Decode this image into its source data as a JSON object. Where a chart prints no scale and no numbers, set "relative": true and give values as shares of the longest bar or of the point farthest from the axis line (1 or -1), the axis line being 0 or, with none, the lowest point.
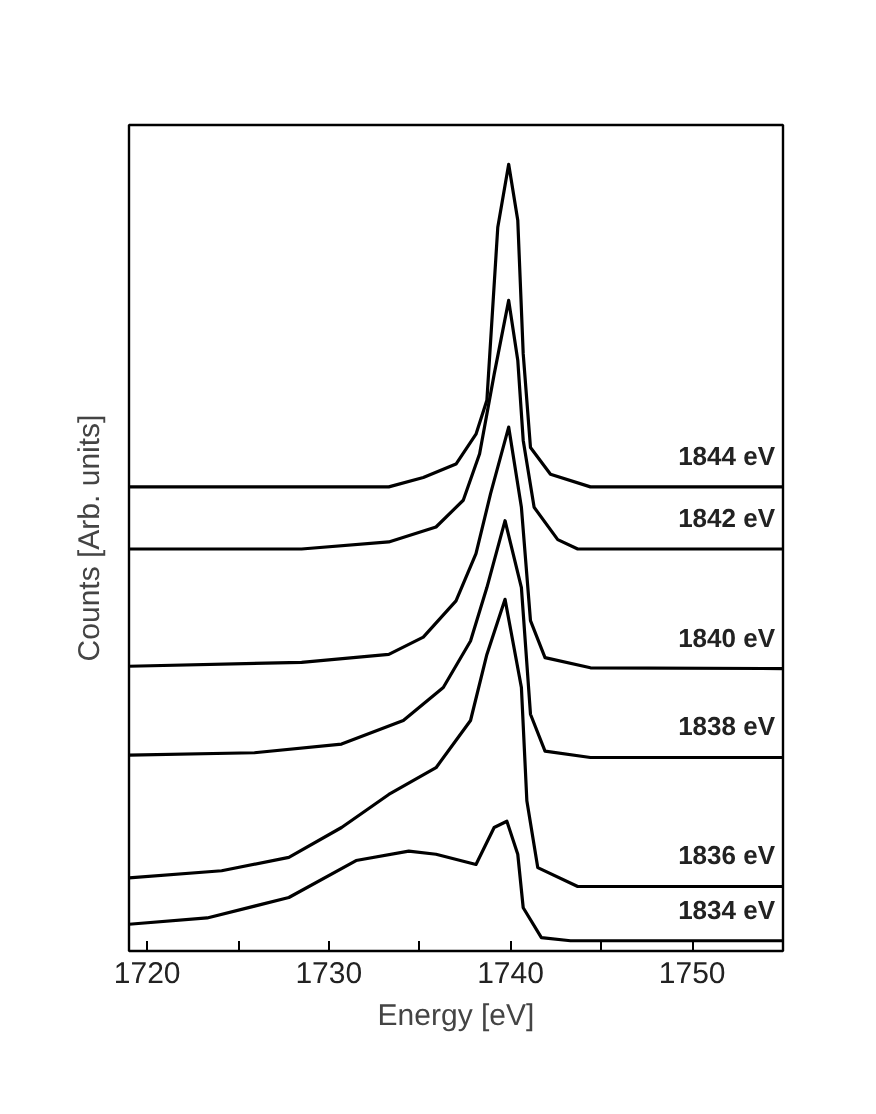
{
  "chart_data": {
    "type": "line",
    "xlabel": "Energy [eV]",
    "ylabel": "Counts [Arb. units]",
    "relative": true,
    "xlim": [
      1719,
      1755
    ],
    "xticks": [
      1720,
      {
        "value": 1725,
        "label": null
      },
      1730,
      {
        "value": 1735,
        "label": null
      },
      1740,
      {
        "value": 1745,
        "label": null
      },
      1750
    ],
    "grid": false,
    "legend": false,
    "marker": "none",
    "line_style": "solid",
    "series": [
      {
        "name": "1844 eV",
        "color": "#000000",
        "x": [
          1719,
          1733.3,
          1735.2,
          1737,
          1738.1,
          1738.7,
          1739.3,
          1739.9,
          1740.4,
          1740.7,
          1741.1,
          1742.2,
          1744.4,
          1755
        ],
        "values": [
          0.59,
          0.59,
          0.602,
          0.619,
          0.657,
          0.7,
          0.92,
          1.0,
          0.929,
          0.759,
          0.64,
          0.606,
          0.59,
          0.59
        ]
      },
      {
        "name": "1842 eV",
        "color": "#000000",
        "x": [
          1719,
          1728.5,
          1733.3,
          1735.9,
          1737.4,
          1738.3,
          1739.1,
          1739.9,
          1740.4,
          1740.7,
          1741.3,
          1742.6,
          1743.7,
          1755
        ],
        "values": [
          0.511,
          0.511,
          0.52,
          0.539,
          0.573,
          0.632,
          0.733,
          0.827,
          0.751,
          0.649,
          0.564,
          0.523,
          0.511,
          0.511
        ]
      },
      {
        "name": "1840 eV",
        "color": "#000000",
        "x": [
          1719,
          1728.5,
          1733.3,
          1735.2,
          1737,
          1738.1,
          1738.9,
          1739.9,
          1740.6,
          1741.1,
          1741.9,
          1744.4,
          1755
        ],
        "values": [
          0.362,
          0.367,
          0.377,
          0.399,
          0.445,
          0.505,
          0.581,
          0.666,
          0.564,
          0.42,
          0.373,
          0.36,
          0.359
        ]
      },
      {
        "name": "1838 eV",
        "color": "#000000",
        "x": [
          1719,
          1725.9,
          1730.7,
          1734.1,
          1736.3,
          1737.8,
          1738.7,
          1739.7,
          1740.6,
          1741.1,
          1741.9,
          1744.4,
          1755
        ],
        "values": [
          0.249,
          0.252,
          0.263,
          0.293,
          0.335,
          0.394,
          0.462,
          0.547,
          0.462,
          0.301,
          0.254,
          0.246,
          0.246
        ]
      },
      {
        "name": "1836 eV",
        "color": "#000000",
        "x": [
          1719,
          1724.1,
          1727.8,
          1730.7,
          1733.3,
          1735.9,
          1737.8,
          1738.7,
          1739.7,
          1740.6,
          1740.9,
          1741.5,
          1743.7,
          1755
        ],
        "values": [
          0.093,
          0.102,
          0.119,
          0.157,
          0.199,
          0.233,
          0.293,
          0.377,
          0.447,
          0.335,
          0.191,
          0.106,
          0.082,
          0.082
        ]
      },
      {
        "name": "1834 eV",
        "color": "#000000",
        "x": [
          1719,
          1723.3,
          1727.8,
          1731.5,
          1734.4,
          1735.9,
          1738.1,
          1739.1,
          1739.8,
          1740.4,
          1740.7,
          1741.7,
          1743.3,
          1755
        ],
        "values": [
          0.034,
          0.042,
          0.068,
          0.115,
          0.127,
          0.123,
          0.11,
          0.157,
          0.165,
          0.123,
          0.055,
          0.017,
          0.013,
          0.013
        ]
      }
    ]
  }
}
